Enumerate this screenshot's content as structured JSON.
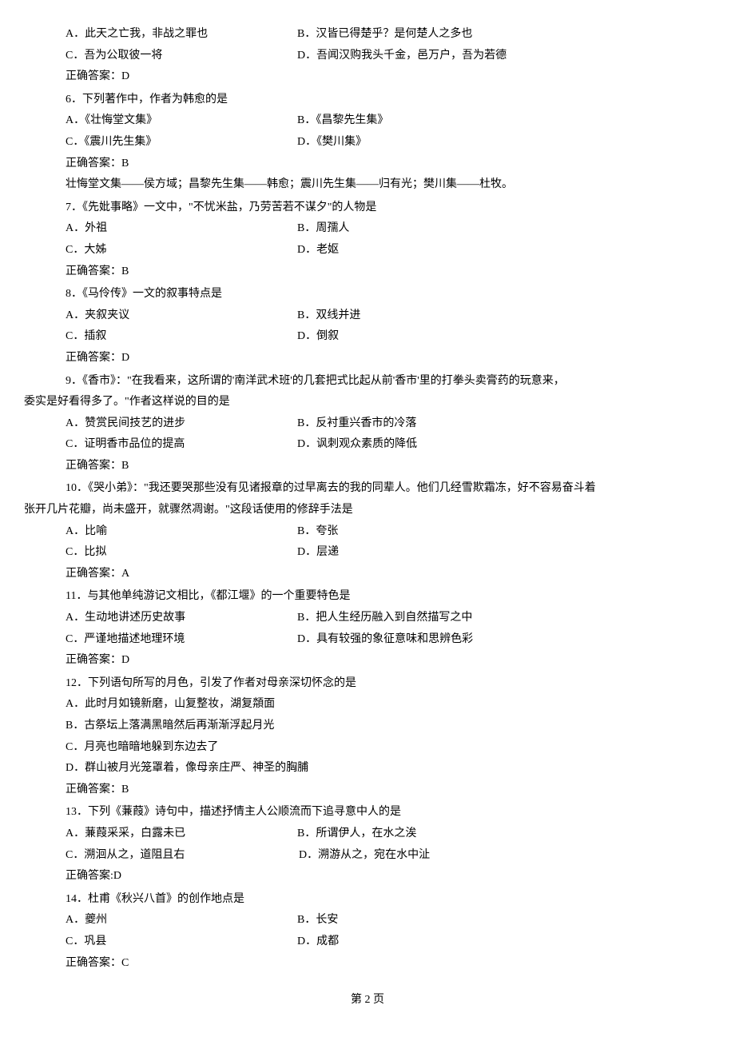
{
  "q5": {
    "optA": "A．此天之亡我，非战之罪也",
    "optB": "B．汉皆已得楚乎？是何楚人之多也",
    "optC": "C．吾为公取彼一将",
    "optD": "D．吾闻汉购我头千金，邑万户，吾为若德",
    "answer": "正确答案：D"
  },
  "q6": {
    "text": "6．下列著作中，作者为韩愈的是",
    "optA": "A．《壮悔堂文集》",
    "optB": "B．《昌黎先生集》",
    "optC": "C．《震川先生集》",
    "optD": "D．《樊川集》",
    "answer": "正确答案：B",
    "explanation": "壮悔堂文集——侯方域；昌黎先生集——韩愈；震川先生集——归有光；樊川集——杜牧。"
  },
  "q7": {
    "text": "7．《先妣事略》一文中，\"不忧米盐，乃劳苦若不谋夕\"的人物是",
    "optA": "A．外祖",
    "optB": "B．周孺人",
    "optC": "C．大姊",
    "optD": "D．老妪",
    "answer": "正确答案：B"
  },
  "q8": {
    "text": "8．《马伶传》一文的叙事特点是",
    "optA": "A．夹叙夹议",
    "optB": "B．双线并进",
    "optC": "C．插叙",
    "optD": "D．倒叙",
    "answer": "正确答案：D"
  },
  "q9": {
    "text1": "9．《香市》：\"在我看来，这所谓的'南洋武术班'的几套把式比起从前'香市'里的打拳头卖膏药的玩意来，",
    "text2": "委实是好看得多了。\"作者这样说的目的是",
    "optA": "A．赞赏民间技艺的进步",
    "optB": "B．反衬重兴香市的冷落",
    "optC": "C．证明香市品位的提高",
    "optD": "D．讽刺观众素质的降低",
    "answer": "正确答案：B"
  },
  "q10": {
    "text1": "10．《哭小弟》：\"我还要哭那些没有见诸报章的过早离去的我的同辈人。他们几经雪欺霜冻，好不容易奋斗着",
    "text2": "张开几片花瓣，尚未盛开，就骤然凋谢。\"这段话使用的修辞手法是",
    "optA": "A．比喻",
    "optB": "B．夸张",
    "optC": "C．比拟",
    "optD": "D．层递",
    "answer": "正确答案：A"
  },
  "q11": {
    "text": "11．与其他单纯游记文相比，《都江堰》的一个重要特色是",
    "optA": "A．生动地讲述历史故事",
    "optB": "B．把人生经历融入到自然描写之中",
    "optC": "C．严谨地描述地理环境",
    "optD": "D．具有较强的象征意味和思辨色彩",
    "answer": "正确答案：D"
  },
  "q12": {
    "text": "12．下列语句所写的月色，引发了作者对母亲深切怀念的是",
    "optA": "A．此时月如镜新磨，山复整妆，湖复頮面",
    "optB": "B．古祭坛上落满黑暗然后再渐渐浮起月光",
    "optC": "C．月亮也暗暗地躲到东边去了",
    "optD": "D．群山被月光笼罩着，像母亲庄严、神圣的胸脯",
    "answer": "正确答案：B"
  },
  "q13": {
    "text": "13．下列《蒹葭》诗句中，描述抒情主人公顺流而下追寻意中人的是",
    "optA": "A．蒹葭采采，白露未已",
    "optB": "B．所谓伊人，在水之涘",
    "optC": "C．溯洄从之，道阻且右",
    "optD": " D．溯游从之，宛在水中沚",
    "answer": "正确答案:D"
  },
  "q14": {
    "text": "14．杜甫《秋兴八首》的创作地点是",
    "optA": "A．夔州",
    "optB": "B．长安",
    "optC": "C．巩县",
    "optD": "D．成都",
    "answer": "正确答案：C"
  },
  "footer": "第 2 页"
}
